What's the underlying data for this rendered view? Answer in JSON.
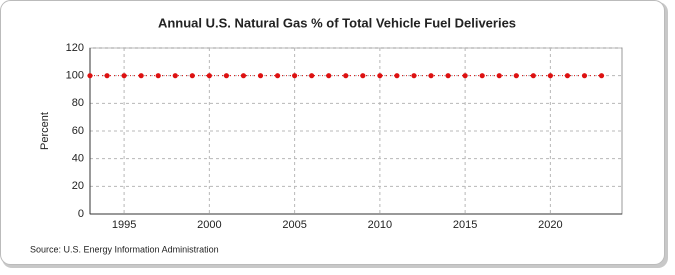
{
  "chart_data": {
    "type": "line",
    "title": "Annual U.S. Natural Gas % of Total Vehicle Fuel Deliveries",
    "y_label": "Percent",
    "source": "Source: U.S. Energy Information Administration",
    "x": [
      1993,
      1994,
      1995,
      1996,
      1997,
      1998,
      1999,
      2000,
      2001,
      2002,
      2003,
      2004,
      2005,
      2006,
      2007,
      2008,
      2009,
      2010,
      2011,
      2012,
      2013,
      2014,
      2015,
      2016,
      2017,
      2018,
      2019,
      2020,
      2021,
      2022,
      2023
    ],
    "values": [
      100,
      100,
      100,
      100,
      100,
      100,
      100,
      100,
      100,
      100,
      100,
      100,
      100,
      100,
      100,
      100,
      100,
      100,
      100,
      100,
      100,
      100,
      100,
      100,
      100,
      100,
      100,
      100,
      100,
      100,
      100
    ],
    "color": "#dd1111",
    "xlim": [
      1993,
      2024.2
    ],
    "xticks": [
      1995,
      2000,
      2005,
      2010,
      2015,
      2020
    ],
    "ylim": [
      0,
      120
    ],
    "yticks": [
      0,
      20,
      40,
      60,
      80,
      100,
      120
    ],
    "grid": true
  }
}
